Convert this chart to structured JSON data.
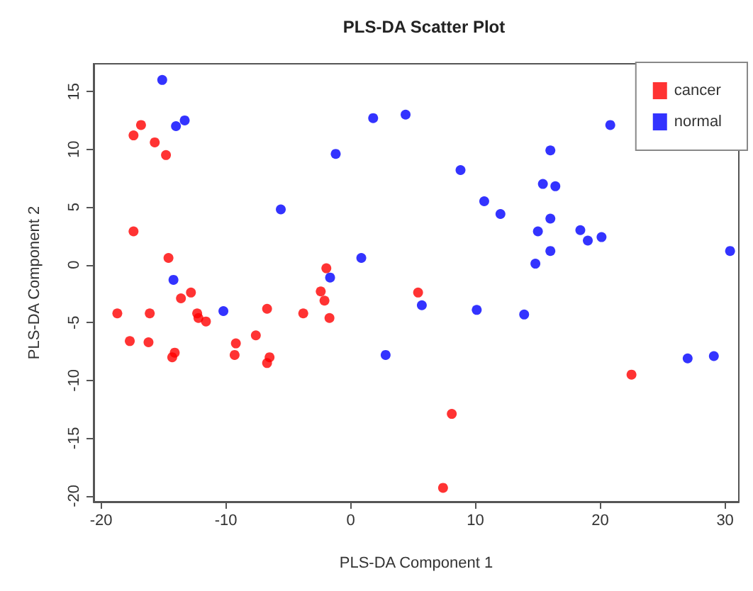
{
  "chart_data": {
    "type": "scatter",
    "title": "PLS-DA Scatter Plot",
    "xlabel": "PLS-DA Component 1",
    "ylabel": "PLS-DA Component 2",
    "xlim": [
      -20.6,
      31.1
    ],
    "xticks": [
      -20,
      -10,
      0,
      10,
      20,
      30
    ],
    "ylim": [
      -20.5,
      17.4
    ],
    "yticks": [
      -20,
      -15,
      -10,
      -5,
      0,
      5,
      10,
      15
    ],
    "grid": false,
    "legend": "top right",
    "marker": "circle",
    "series": [
      {
        "name": "cancer",
        "color": "#ff0000",
        "x": [
          -17.4,
          -16.8,
          -15.7,
          -14.8,
          -17.4,
          -14.6,
          -1.95,
          -2.4,
          -2.1,
          -1.7,
          -12.8,
          -13.6,
          -18.7,
          -16.1,
          -12.3,
          -12.2,
          -11.6,
          -6.7,
          -3.8,
          -17.7,
          -16.2,
          -14.1,
          -14.3,
          -9.2,
          -9.3,
          -7.6,
          -6.5,
          -6.7,
          5.4,
          8.1,
          7.4,
          22.5
        ],
        "values": [
          11.2,
          12.1,
          10.6,
          9.5,
          2.9,
          0.6,
          -0.3,
          -2.3,
          -3.1,
          -4.6,
          -2.4,
          -2.9,
          -4.2,
          -4.2,
          -4.2,
          -4.6,
          -4.9,
          -3.8,
          -4.2,
          -6.6,
          -6.7,
          -7.6,
          -8.0,
          -6.8,
          -7.8,
          -6.1,
          -8.0,
          -8.5,
          -2.4,
          -12.9,
          -19.3,
          -9.5
        ]
      },
      {
        "name": "normal",
        "color": "#0000ff",
        "x": [
          -15.1,
          -14.0,
          -13.3,
          -5.6,
          -1.2,
          1.8,
          0.85,
          -1.65,
          -14.2,
          -10.2,
          4.4,
          8.8,
          10.7,
          12.0,
          16.0,
          15.4,
          16.4,
          16.0,
          15.0,
          18.4,
          19.0,
          20.1,
          16.0,
          14.8,
          20.8,
          30.4,
          5.7,
          10.1,
          13.9,
          2.8,
          27.0,
          29.1
        ],
        "values": [
          16.0,
          12.0,
          12.5,
          4.8,
          9.6,
          12.7,
          0.6,
          -1.1,
          -1.3,
          -4.0,
          13.0,
          8.2,
          5.5,
          4.4,
          9.9,
          7.0,
          6.8,
          4.0,
          2.9,
          3.0,
          2.1,
          2.4,
          1.2,
          0.1,
          12.1,
          1.2,
          -3.5,
          -3.9,
          -4.3,
          -7.8,
          -8.1,
          -7.9
        ]
      }
    ]
  }
}
